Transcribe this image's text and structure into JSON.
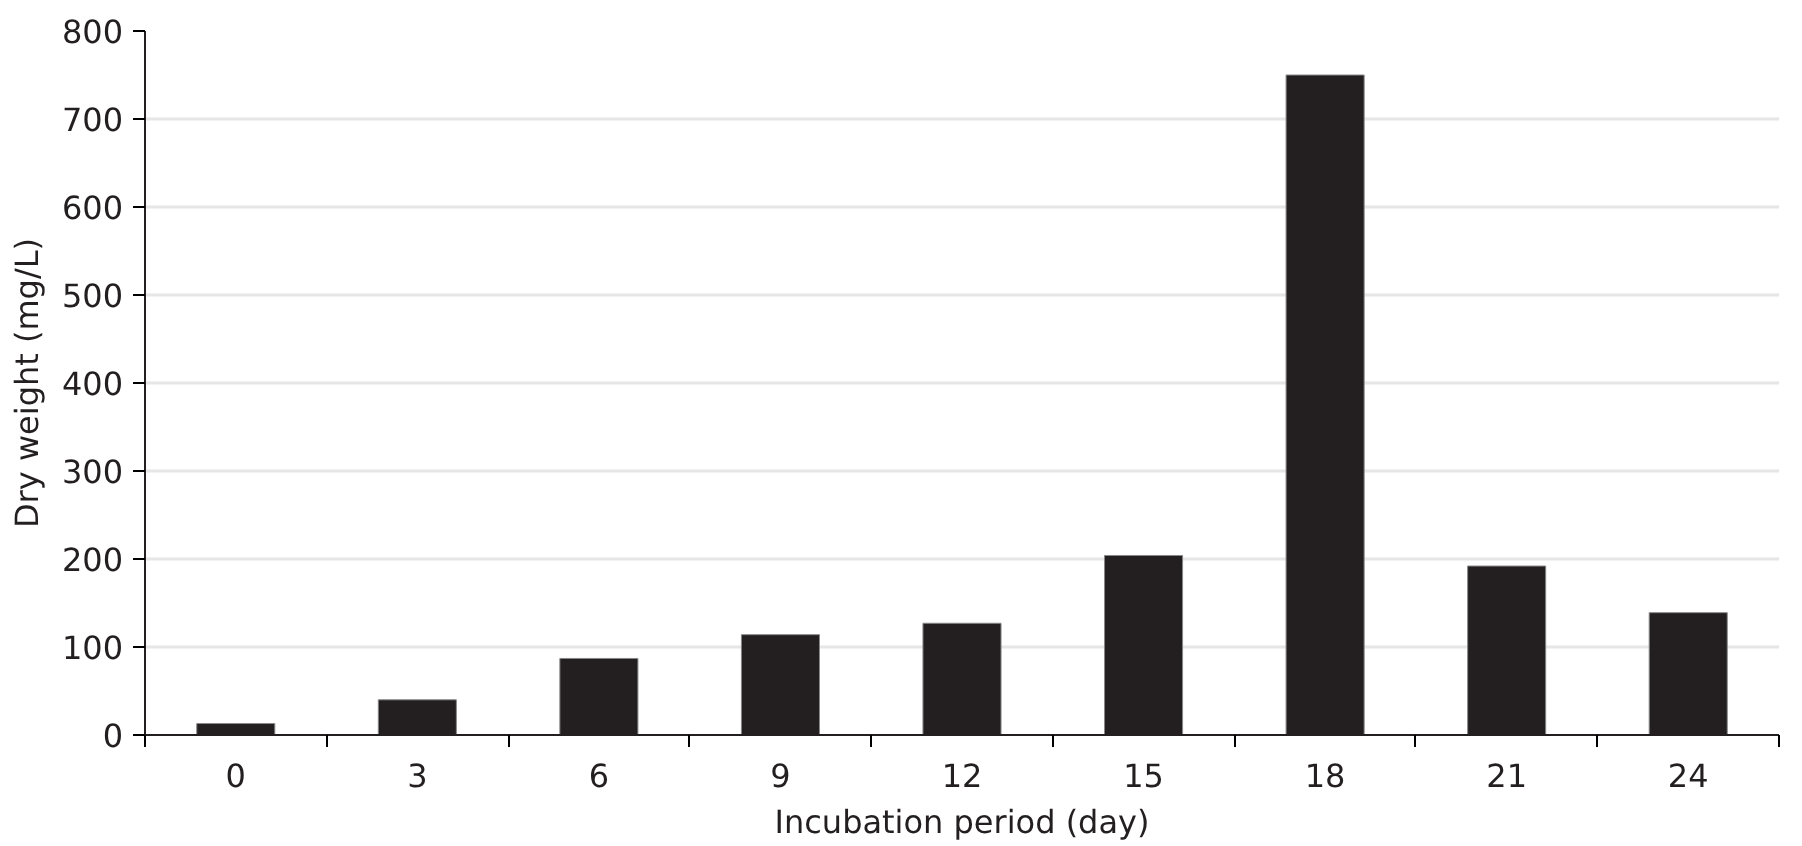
{
  "chart_data": {
    "type": "bar",
    "xlabel": "Incubation period (day)",
    "ylabel": "Dry weight (mg/L)",
    "categories": [
      "0",
      "3",
      "6",
      "9",
      "12",
      "15",
      "18",
      "21",
      "24"
    ],
    "values": [
      13,
      40,
      87,
      114,
      127,
      204,
      750,
      192,
      139
    ],
    "color": "#231f20",
    "ylim": [
      0,
      800
    ],
    "yticks": [
      0,
      100,
      200,
      300,
      400,
      500,
      600,
      700,
      800
    ],
    "grid": "y"
  }
}
